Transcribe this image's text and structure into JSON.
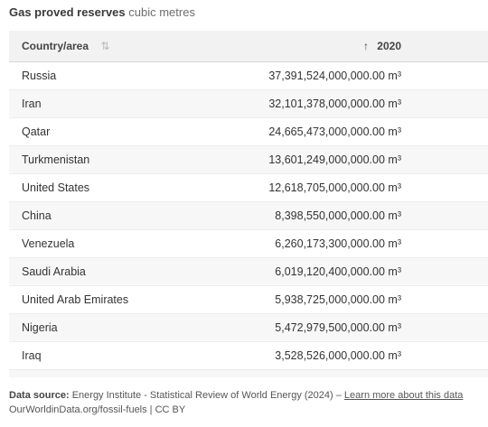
{
  "title": {
    "main": "Gas proved reserves",
    "unit": "cubic metres"
  },
  "table": {
    "headers": {
      "country": "Country/area",
      "sort_glyph": "⇅",
      "year_arrow": "↑",
      "year": "2020"
    },
    "rows": [
      {
        "country": "Russia",
        "value": "37,391,524,000,000.00 m³"
      },
      {
        "country": "Iran",
        "value": "32,101,378,000,000.00 m³"
      },
      {
        "country": "Qatar",
        "value": "24,665,473,000,000.00 m³"
      },
      {
        "country": "Turkmenistan",
        "value": "13,601,249,000,000.00 m³"
      },
      {
        "country": "United States",
        "value": "12,618,705,000,000.00 m³"
      },
      {
        "country": "China",
        "value": "8,398,550,000,000.00 m³"
      },
      {
        "country": "Venezuela",
        "value": "6,260,173,300,000.00 m³"
      },
      {
        "country": "Saudi Arabia",
        "value": "6,019,120,400,000.00 m³"
      },
      {
        "country": "United Arab Emirates",
        "value": "5,938,725,000,000.00 m³"
      },
      {
        "country": "Nigeria",
        "value": "5,472,979,500,000.00 m³"
      },
      {
        "country": "Iraq",
        "value": "3,528,526,000,000.00 m³"
      }
    ]
  },
  "footer": {
    "source_label": "Data source:",
    "source_text": "Energy Institute - Statistical Review of World Energy (2024) –",
    "learn_more": "Learn more about this data",
    "url_text": "OurWorldinData.org/fossil-fuels | CC BY"
  }
}
